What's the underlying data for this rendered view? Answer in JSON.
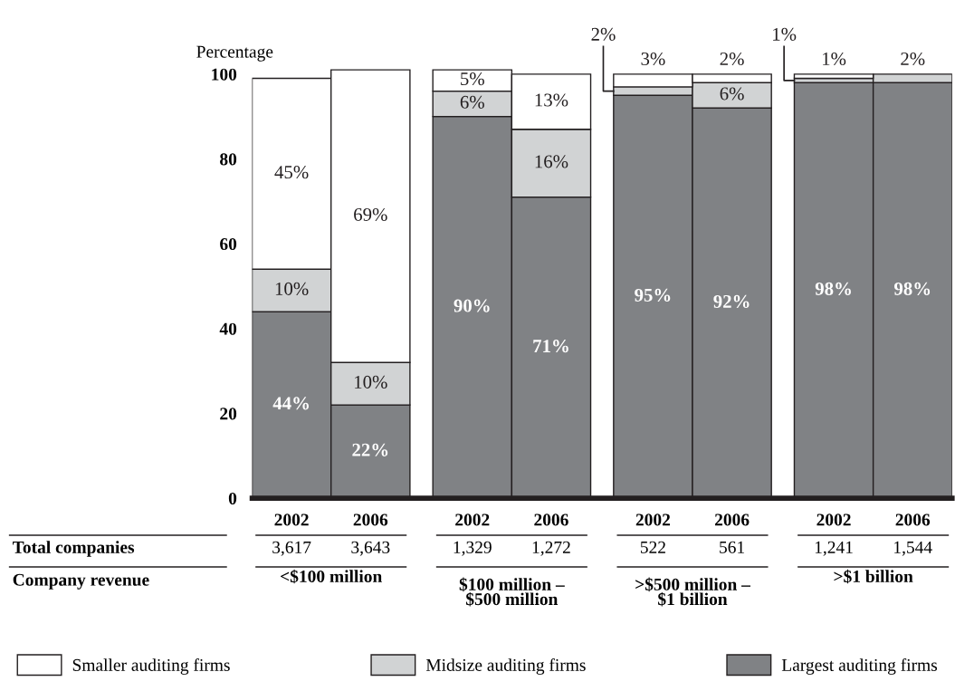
{
  "chart_data": {
    "type": "bar",
    "stacked": true,
    "ylabel": "Percentage",
    "categories": [
      "2002",
      "2006",
      "2002",
      "2006",
      "2002",
      "2006",
      "2002",
      "2006"
    ],
    "series": [
      {
        "name": "Largest auditing firms",
        "color": "#808285",
        "values": [
          44,
          22,
          90,
          71,
          95,
          92,
          98,
          98
        ],
        "value_labels": [
          "44%",
          "22%",
          "90%",
          "71%",
          "95%",
          "92%",
          "98%",
          "98%"
        ]
      },
      {
        "name": "Midsize auditing firms",
        "color": "#d1d3d4",
        "values": [
          10,
          10,
          6,
          16,
          2,
          6,
          1,
          2
        ],
        "value_labels": [
          "10%",
          "10%",
          "6%",
          "16%",
          "2%",
          "6%",
          "1%",
          "2%"
        ]
      },
      {
        "name": "Smaller auditing firms",
        "color": "#ffffff",
        "values": [
          45,
          69,
          5,
          13,
          3,
          2,
          1,
          0
        ],
        "value_labels": [
          "45%",
          "69%",
          "5%",
          "13%",
          "3%",
          "2%",
          "1%",
          null
        ]
      }
    ],
    "ylim": [
      0,
      102
    ],
    "yticks": [
      0,
      20,
      40,
      60,
      80,
      100
    ],
    "grid": false,
    "legend": "bottom",
    "annotations": [
      "Total companies",
      "3,617",
      "3,643",
      "1,329",
      "1,272",
      "522",
      "561",
      "1,241",
      "1,544",
      "Company revenue",
      "<$100 million",
      "$100 million –\n$500 million",
      ">$500 million –\n$1 billion",
      ">$1 billion"
    ]
  }
}
